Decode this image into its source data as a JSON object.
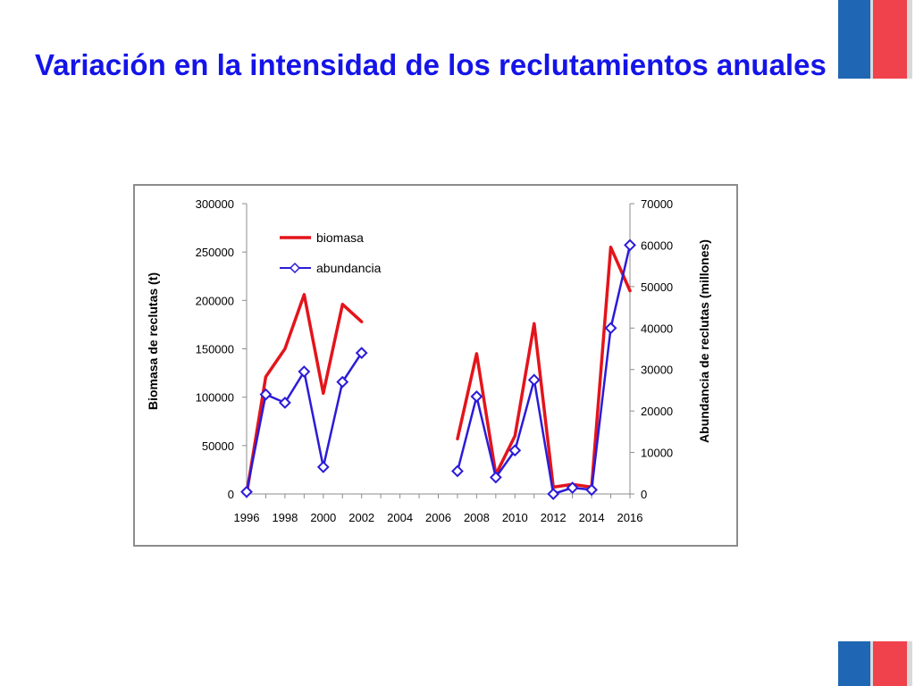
{
  "slide": {
    "title": "Variación en la intensidad de los reclutamientos anuales"
  },
  "colors": {
    "title": "#1414e8",
    "biomasa": "#e4141b",
    "abundancia": "#2b1bd8",
    "flag_blue": "#1f67b4",
    "flag_red": "#f0424c"
  },
  "chart_data": {
    "type": "line",
    "title": "",
    "x": [
      1996,
      1997,
      1998,
      1999,
      2000,
      2001,
      2002,
      2003,
      2004,
      2005,
      2006,
      2007,
      2008,
      2009,
      2010,
      2011,
      2012,
      2013,
      2014,
      2015,
      2016
    ],
    "x_tick_labels": [
      "1996",
      "1998",
      "2000",
      "2002",
      "2004",
      "2006",
      "2008",
      "2010",
      "2012",
      "2014",
      "2016"
    ],
    "xlim": [
      1996,
      2016
    ],
    "ylabel": "Biomasa de reclutas (t)",
    "ylabel_right": "Abundancia de reclutas (millones)",
    "ylim": [
      0,
      300000
    ],
    "ylim_right": [
      0,
      70000
    ],
    "y_ticks": [
      "0",
      "50000",
      "100000",
      "150000",
      "200000",
      "250000",
      "300000"
    ],
    "y_ticks_right": [
      "0",
      "10000",
      "20000",
      "30000",
      "40000",
      "50000",
      "60000",
      "70000"
    ],
    "grid": false,
    "legend": "top-left",
    "series": [
      {
        "name": "biomasa",
        "axis": "left",
        "color": "#e4141b",
        "values": [
          0,
          121000,
          150000,
          206000,
          104000,
          196000,
          178000,
          null,
          null,
          null,
          null,
          57000,
          145000,
          20000,
          60000,
          176000,
          7000,
          10000,
          7000,
          255000,
          210000
        ]
      },
      {
        "name": "abundancia",
        "axis": "right",
        "color": "#2b1bd8",
        "marker": "diamond",
        "values": [
          500,
          24000,
          22000,
          29500,
          6500,
          27000,
          34000,
          null,
          null,
          null,
          null,
          5500,
          23500,
          4000,
          10500,
          27500,
          0,
          1500,
          1000,
          40000,
          60000
        ]
      }
    ]
  }
}
